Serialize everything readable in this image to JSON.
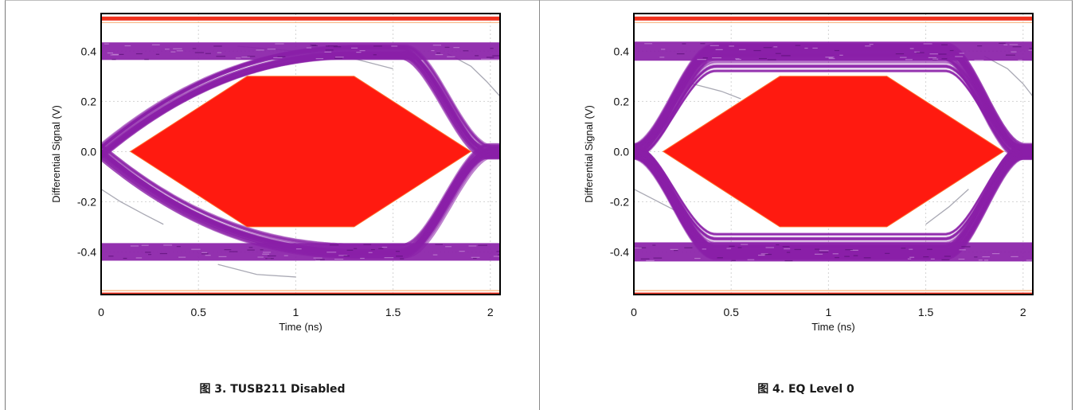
{
  "captions": [
    "图 3. TUSB211 Disabled",
    "图 4. EQ Level 0"
  ],
  "chart_data": [
    {
      "type": "scatter",
      "title": "",
      "caption": "图 3. TUSB211 Disabled",
      "xlabel": "Time (ns)",
      "ylabel": "Differential Signal (V)",
      "xlim": [
        0,
        2.05
      ],
      "ylim": [
        -0.57,
        0.55
      ],
      "x_ticks": [
        "0",
        "0.5",
        "1",
        "1.5",
        "2"
      ],
      "y_ticks": [
        "0.4",
        "0.2",
        "0.0",
        "-0.2",
        "-0.4"
      ],
      "grid": true,
      "colors": {
        "eye_trace": "#8a1fa8",
        "mask": "#ff1a10",
        "limit_line": "#f0321e"
      },
      "eye_mask": {
        "x": [
          0.15,
          0.75,
          1.3,
          1.9,
          1.3,
          0.75
        ],
        "y": [
          0.0,
          0.3,
          0.3,
          0.0,
          -0.3,
          -0.3
        ]
      },
      "limit_lines": [
        0.53,
        -0.57
      ],
      "high_level": 0.4,
      "low_level": -0.4,
      "eye_crossings": [
        0.0,
        2.0
      ]
    },
    {
      "type": "scatter",
      "title": "",
      "caption": "图 4. EQ Level 0",
      "xlabel": "Time (ns)",
      "ylabel": "Differential Signal (V)",
      "xlim": [
        0,
        2.05
      ],
      "ylim": [
        -0.57,
        0.55
      ],
      "x_ticks": [
        "0",
        "0.5",
        "1",
        "1.5",
        "2"
      ],
      "y_ticks": [
        "0.4",
        "0.2",
        "0.0",
        "-0.2",
        "-0.4"
      ],
      "grid": true,
      "colors": {
        "eye_trace": "#8a1fa8",
        "mask": "#ff1a10",
        "limit_line": "#f0321e"
      },
      "eye_mask": {
        "x": [
          0.15,
          0.75,
          1.3,
          1.9,
          1.3,
          0.75
        ],
        "y": [
          0.0,
          0.3,
          0.3,
          0.0,
          -0.3,
          -0.3
        ]
      },
      "limit_lines": [
        0.53,
        -0.57
      ],
      "high_level": 0.4,
      "low_level": -0.4,
      "eye_crossings": [
        0.0,
        2.0
      ]
    }
  ]
}
